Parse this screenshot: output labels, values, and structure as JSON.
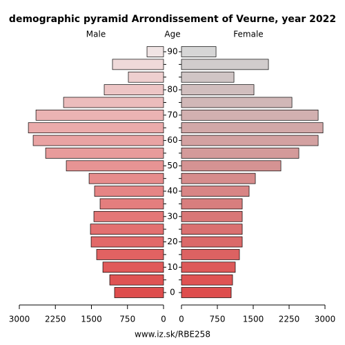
{
  "chart_data": {
    "type": "pyramid",
    "title": "demographic pyramid Arrondissement of Veurne, year 2022",
    "y_label": "Age",
    "footer": "www.iz.sk/RBE258",
    "categories": [
      "0",
      null,
      "10",
      null,
      "20",
      null,
      "30",
      null,
      "40",
      null,
      "50",
      null,
      "60",
      null,
      "70",
      null,
      "80",
      null,
      null,
      "90"
    ],
    "series": [
      {
        "name": "Male",
        "values": [
          1019,
          1119,
          1262,
          1392,
          1506,
          1521,
          1449,
          1320,
          1435,
          1549,
          2023,
          2453,
          2712,
          2812,
          2654,
          2080,
          1234,
          732,
          1062,
          344
        ],
        "colors": [
          "#de4d4d",
          "#df5353",
          "#e05a5a",
          "#e16262",
          "#e26969",
          "#e37070",
          "#e47777",
          "#e47e7e",
          "#e58585",
          "#e68c8c",
          "#e79494",
          "#e89b9b",
          "#e9a3a3",
          "#eaabab",
          "#ebb3b3",
          "#ecbcbc",
          "#edc5c5",
          "#eecfcf",
          "#efd9d9",
          "#f0e4e4"
        ]
      },
      {
        "name": "Female",
        "values": [
          1039,
          1068,
          1125,
          1212,
          1270,
          1270,
          1270,
          1270,
          1414,
          1544,
          2078,
          2453,
          2857,
          2958,
          2857,
          2309,
          1515,
          1097,
          1818,
          722
        ],
        "colors": [
          "#de4d4d",
          "#df5353",
          "#dd5a5a",
          "#dc6262",
          "#db6969",
          "#da7070",
          "#d97777",
          "#d87e7e",
          "#d88585",
          "#d68c8c",
          "#d59393",
          "#d49a9a",
          "#d3a1a1",
          "#d2a8a8",
          "#d2b0b0",
          "#d1b7b7",
          "#d1bebe",
          "#d0c5c5",
          "#d1cccc",
          "#d6d6d6"
        ]
      }
    ],
    "xlim": [
      0,
      3000
    ],
    "xticks": [
      0,
      750,
      1500,
      2250,
      3000
    ]
  }
}
